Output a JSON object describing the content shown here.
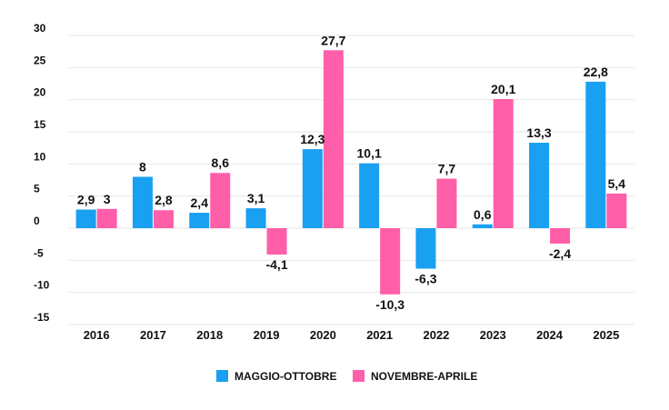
{
  "chart_data": {
    "type": "bar",
    "categories": [
      "2016",
      "2017",
      "2018",
      "2019",
      "2020",
      "2021",
      "2022",
      "2023",
      "2024",
      "2025"
    ],
    "series": [
      {
        "name": "MAGGIO-OTTOBRE",
        "color": "#1aa0f0",
        "values": [
          2.9,
          8,
          2.4,
          3.1,
          12.3,
          10.1,
          -6.3,
          0.6,
          13.3,
          22.8
        ],
        "labels": [
          "2,9",
          "8",
          "2,4",
          "3,1",
          "12,3",
          "10,1",
          "-6,3",
          "0,6",
          "13,3",
          "22,8"
        ]
      },
      {
        "name": "NOVEMBRE-APRILE",
        "color": "#ff5fa8",
        "values": [
          3,
          2.8,
          8.6,
          -4.1,
          27.7,
          -10.3,
          7.7,
          20.1,
          -2.4,
          5.4
        ],
        "labels": [
          "3",
          "2,8",
          "8,6",
          "-4,1",
          "27,7",
          "-10,3",
          "7,7",
          "20,1",
          "-2,4",
          "5,4"
        ]
      }
    ],
    "yticks": [
      30,
      25,
      20,
      15,
      10,
      5,
      0,
      -5,
      -10,
      -15
    ],
    "ytick_labels": [
      "30",
      "25",
      "20",
      "15",
      "10",
      "5",
      "0",
      "-5",
      "-10",
      "-15"
    ],
    "ylim": [
      -15,
      30
    ],
    "grid": true,
    "legend_position": "bottom-center",
    "title": "",
    "xlabel": "",
    "ylabel": ""
  }
}
